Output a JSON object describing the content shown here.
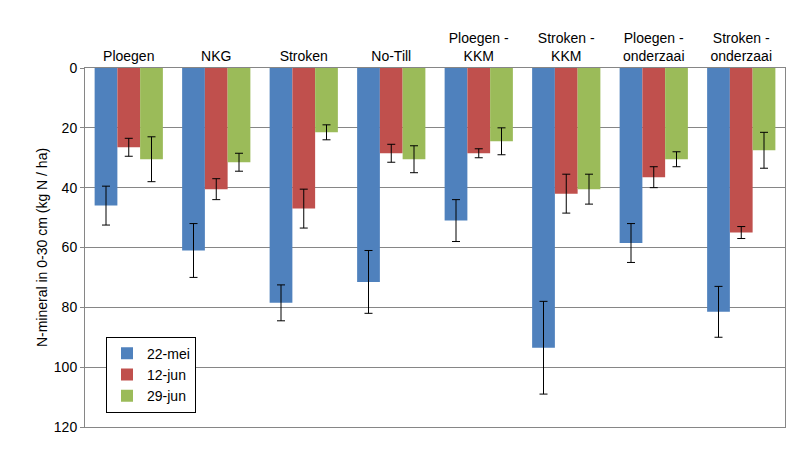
{
  "chart_data": {
    "type": "bar",
    "y_label": "N-mineral in 0-30 cm (kg N / ha)",
    "categories": [
      "Ploegen",
      "NKG",
      "Stroken",
      "No-Till",
      "Ploegen - KKM",
      "Stroken - KKM",
      "Ploegen - onderzaai",
      "Stroken - onderzaai"
    ],
    "series": [
      {
        "name": "22-mei",
        "color": "#4f81bd",
        "values": [
          46,
          61,
          78.5,
          71.5,
          51,
          93.5,
          58.5,
          81.5
        ],
        "errors": [
          6.5,
          9,
          6,
          10.5,
          7,
          15.5,
          6.5,
          8.5
        ]
      },
      {
        "name": "12-jun",
        "color": "#c0504d",
        "values": [
          26.5,
          40.5,
          47,
          28.5,
          28.5,
          42,
          36.5,
          55
        ],
        "errors": [
          3,
          3.5,
          6.5,
          3,
          1.5,
          6.5,
          3.5,
          2
        ]
      },
      {
        "name": "29-jun",
        "color": "#9bbb59",
        "values": [
          30.5,
          31.5,
          21.5,
          30.5,
          24.5,
          40.5,
          30.5,
          27.5
        ],
        "errors": [
          7.5,
          3,
          2.5,
          4.5,
          4.5,
          5,
          2.5,
          6
        ]
      }
    ],
    "ylim": [
      0,
      120
    ],
    "yticks": [
      0,
      20,
      40,
      60,
      80,
      100,
      120
    ],
    "grid": true,
    "legend": "lower left"
  }
}
